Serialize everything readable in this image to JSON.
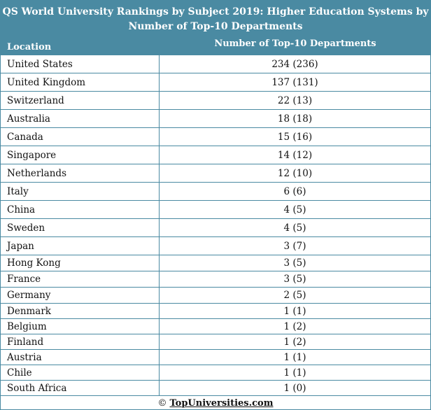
{
  "table": {
    "title": "QS World University Rankings by Subject 2019: Higher Education Systems by Number of Top-10 Departments",
    "columns": [
      "Location",
      "Number of Top-10 Departments"
    ],
    "rows": [
      [
        "United States",
        "234 (236)"
      ],
      [
        "United Kingdom",
        "137 (131)"
      ],
      [
        "Switzerland",
        "22 (13)"
      ],
      [
        "Australia",
        "18 (18)"
      ],
      [
        "Canada",
        "15 (16)"
      ],
      [
        "Singapore",
        "14 (12)"
      ],
      [
        "Netherlands",
        "12 (10)"
      ],
      [
        "Italy",
        "6 (6)"
      ],
      [
        "China",
        "4 (5)"
      ],
      [
        "Sweden",
        "4 (5)"
      ],
      [
        "Japan",
        "3 (7)"
      ],
      [
        "Hong Kong",
        "3 (5)"
      ],
      [
        "France",
        "3 (5)"
      ],
      [
        "Germany",
        "2 (5)"
      ],
      [
        "Denmark",
        "1 (1)"
      ],
      [
        "Belgium",
        "1 (2)"
      ],
      [
        "Finland",
        "1 (2)"
      ],
      [
        "Austria",
        "1 (1)"
      ],
      [
        "Chile",
        "1 (1)"
      ],
      [
        "South Africa",
        "1 (0)"
      ]
    ]
  },
  "footer": {
    "copyright": "©",
    "link": "TopUniversities.com"
  },
  "colors": {
    "header_bg": "#4a8aa2",
    "header_text": "#ffffff",
    "border": "#4a8aa2"
  }
}
